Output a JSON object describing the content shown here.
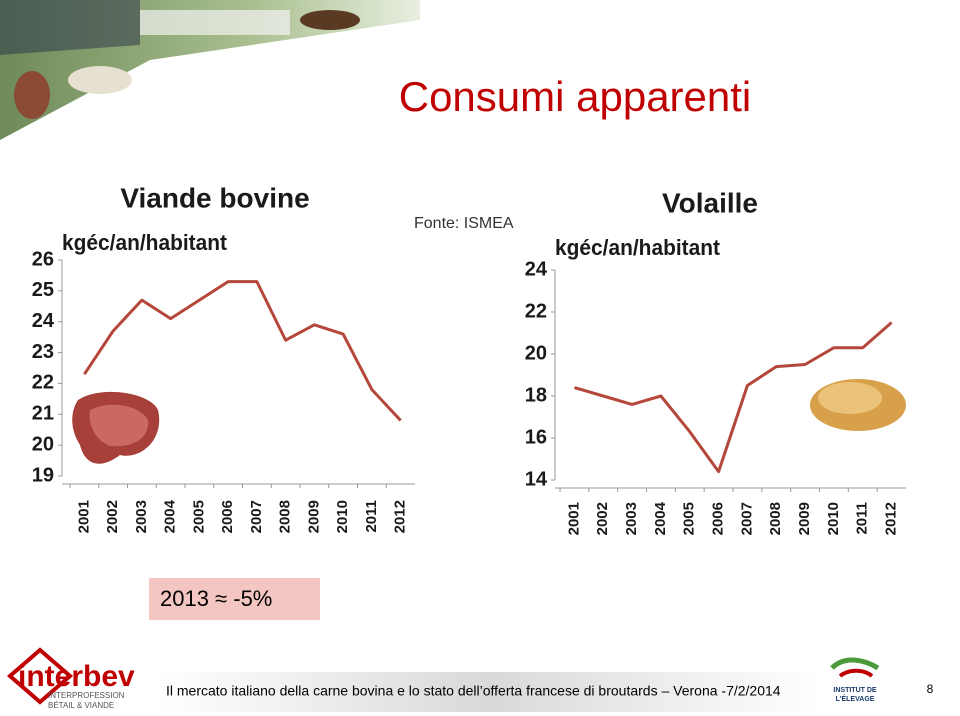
{
  "header": {
    "title": "Consumi apparenti",
    "source": "Fonte: ISMEA"
  },
  "chart_data": [
    {
      "type": "line",
      "title": "Viande bovine",
      "y_label": "kgéc/an/habitant",
      "categories": [
        "2001",
        "2002",
        "2003",
        "2004",
        "2005",
        "2006",
        "2007",
        "2008",
        "2009",
        "2010",
        "2011",
        "2012"
      ],
      "series": [
        {
          "name": "Viande bovine",
          "color": "#b5473a",
          "values": [
            22.3,
            23.7,
            24.7,
            24.1,
            24.7,
            25.3,
            25.3,
            23.4,
            23.9,
            23.6,
            21.8,
            20.8
          ]
        }
      ],
      "ylim": [
        19,
        26
      ],
      "yticks": [
        19,
        20,
        21,
        22,
        23,
        24,
        25,
        26
      ]
    },
    {
      "type": "line",
      "title": "Volaille",
      "y_label": "kgéc/an/habitant",
      "categories": [
        "2001",
        "2002",
        "2003",
        "2004",
        "2005",
        "2006",
        "2007",
        "2008",
        "2009",
        "2010",
        "2011",
        "2012"
      ],
      "series": [
        {
          "name": "Volaille",
          "color": "#b5473a",
          "values": [
            18.4,
            18.0,
            17.6,
            18.0,
            16.3,
            14.4,
            18.5,
            19.4,
            19.5,
            20.3,
            20.3,
            21.5
          ]
        }
      ],
      "ylim": [
        14,
        24
      ],
      "yticks": [
        14,
        16,
        18,
        20,
        22,
        24
      ]
    }
  ],
  "highlight": {
    "text": "2013 ≈ -5%"
  },
  "footer": {
    "text": "Il mercato italiano della carne bovina e lo stato dell’offerta francese di broutards – Verona -7/2/2014",
    "page": "8",
    "logo_left": "interbev",
    "logo_left_sub1": "INTERPROFESSION",
    "logo_left_sub2": "BÉTAIL & VIANDE",
    "logo_right1": "INSTITUT DE",
    "logo_right2": "L'ÉLEVAGE"
  }
}
